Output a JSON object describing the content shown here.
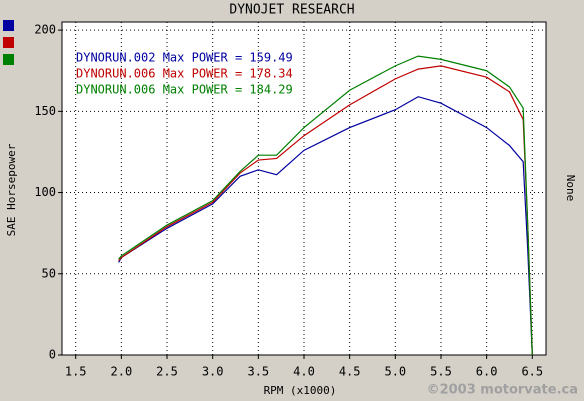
{
  "chart_data": {
    "type": "line",
    "title": "DYNOJET RESEARCH",
    "x_label": "RPM (x1000)",
    "y_label": "SAE Horsepower",
    "y2_label": "None",
    "watermark": "©2003 motorvate.ca",
    "x": [
      1.97,
      2.0,
      2.5,
      3.0,
      3.3,
      3.5,
      3.7,
      4.0,
      4.5,
      5.0,
      5.25,
      5.5,
      6.0,
      6.25,
      6.4,
      6.45,
      6.5
    ],
    "series": [
      {
        "name": "DYNORUN.002 Max POWER = 159.49",
        "color": "#0000a0",
        "values": [
          57,
          60,
          78,
          93,
          110,
          114,
          111,
          126,
          140,
          151,
          159,
          155,
          140,
          129,
          119,
          65,
          0
        ]
      },
      {
        "name": "DYNORUN.006 Max POWER = 178.34",
        "color": "#c00000",
        "values": [
          58,
          60,
          79,
          94,
          112,
          120,
          121,
          135,
          154,
          170,
          176,
          178,
          171,
          162,
          145,
          80,
          0
        ]
      },
      {
        "name": "DYNORUN.006 Max POWER = 184.29",
        "color": "#008000",
        "values": [
          59,
          61,
          80,
          95,
          113,
          123,
          123,
          140,
          163,
          178,
          184,
          182,
          175,
          165,
          152,
          80,
          0
        ]
      }
    ],
    "xlim": [
      1.35,
      6.65
    ],
    "ylim": [
      0,
      205
    ],
    "xticks": [
      {
        "value": 1.5,
        "label": "1.5"
      },
      {
        "value": 2,
        "label": "2.0"
      },
      {
        "value": 2.5,
        "label": "2.5"
      },
      {
        "value": 3,
        "label": "3.0"
      },
      {
        "value": 3.5,
        "label": "3.5"
      },
      {
        "value": 4,
        "label": "4.0"
      },
      {
        "value": 4.5,
        "label": "4.5"
      },
      {
        "value": 5,
        "label": "5.0"
      },
      {
        "value": 5.5,
        "label": "5.5"
      },
      {
        "value": 6,
        "label": "6.0"
      },
      {
        "value": 6.5,
        "label": "6.5"
      }
    ],
    "yticks": [
      0,
      50,
      100,
      150,
      200
    ],
    "grid": true
  }
}
